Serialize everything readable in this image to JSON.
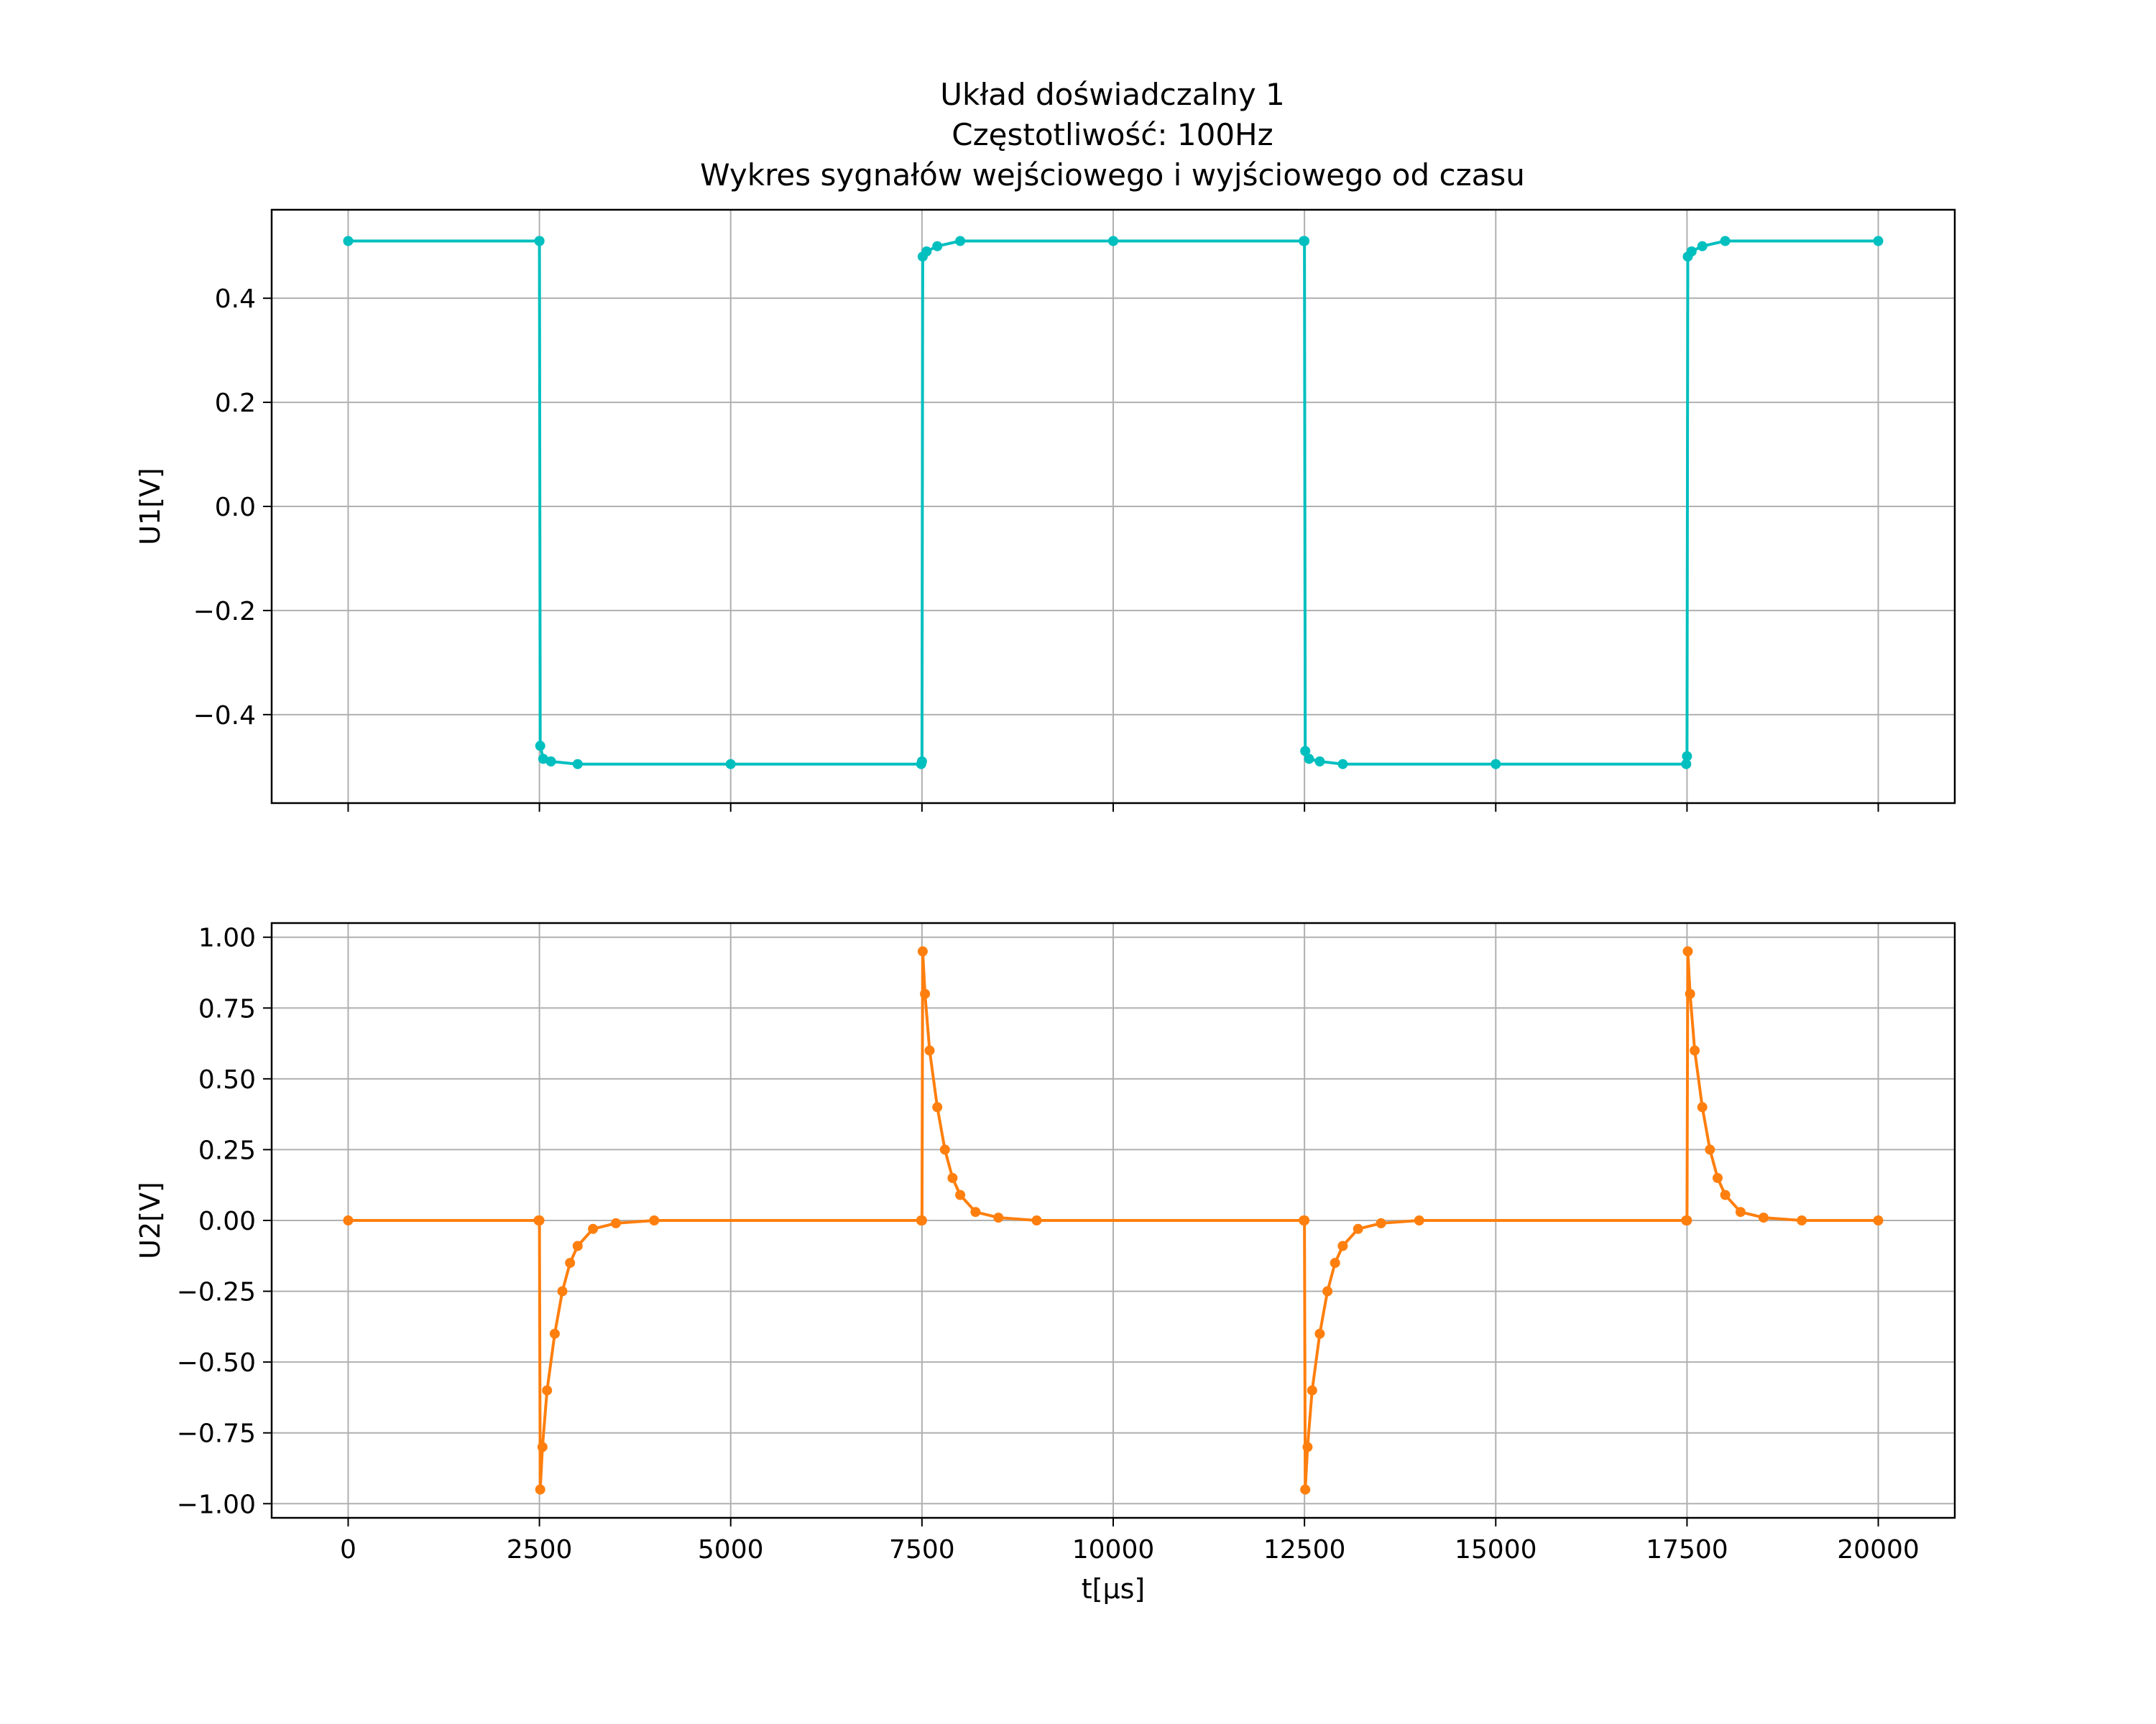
{
  "title_lines": [
    "Układ doświadczalny 1",
    "Częstotliwość: 100Hz",
    "Wykres sygnałów wejściowego i wyjściowego od czasu"
  ],
  "chart_data": [
    {
      "type": "line",
      "ylabel": "U1[V]",
      "xlim": [
        -1000,
        21000
      ],
      "ylim": [
        -0.57,
        0.57
      ],
      "xticks": [
        0,
        2500,
        5000,
        7500,
        10000,
        12500,
        15000,
        17500,
        20000
      ],
      "xtick_labels": [
        "",
        "",
        "",
        "",
        "",
        "",
        "",
        "",
        ""
      ],
      "yticks": [
        -0.4,
        -0.2,
        0.0,
        0.2,
        0.4
      ],
      "ytick_labels": [
        "−0.4",
        "−0.2",
        "0.0",
        "0.2",
        "0.4"
      ],
      "grid": true,
      "color": "#00bfbf",
      "series": [
        {
          "points": [
            [
              0,
              0.51
            ],
            [
              2500,
              0.51
            ],
            [
              2500,
              0.51
            ],
            [
              2510,
              -0.46
            ],
            [
              2550,
              -0.485
            ],
            [
              2650,
              -0.49
            ],
            [
              3000,
              -0.495
            ],
            [
              5000,
              -0.495
            ],
            [
              7490,
              -0.495
            ],
            [
              7500,
              -0.49
            ],
            [
              7510,
              0.48
            ],
            [
              7560,
              0.49
            ],
            [
              7700,
              0.5
            ],
            [
              8000,
              0.51
            ],
            [
              10000,
              0.51
            ],
            [
              12490,
              0.51
            ],
            [
              12500,
              0.51
            ],
            [
              12510,
              -0.47
            ],
            [
              12560,
              -0.485
            ],
            [
              12700,
              -0.49
            ],
            [
              13000,
              -0.495
            ],
            [
              15000,
              -0.495
            ],
            [
              17490,
              -0.495
            ],
            [
              17500,
              -0.48
            ],
            [
              17510,
              0.48
            ],
            [
              17560,
              0.49
            ],
            [
              17700,
              0.5
            ],
            [
              18000,
              0.51
            ],
            [
              20000,
              0.51
            ]
          ]
        }
      ]
    },
    {
      "type": "line",
      "ylabel": "U2[V]",
      "xlabel": "t[μs]",
      "xlim": [
        -1000,
        21000
      ],
      "ylim": [
        -1.05,
        1.05
      ],
      "xticks": [
        0,
        2500,
        5000,
        7500,
        10000,
        12500,
        15000,
        17500,
        20000
      ],
      "xtick_labels": [
        "0",
        "2500",
        "5000",
        "7500",
        "10000",
        "12500",
        "15000",
        "17500",
        "20000"
      ],
      "yticks": [
        -1.0,
        -0.75,
        -0.5,
        -0.25,
        0.0,
        0.25,
        0.5,
        0.75,
        1.0
      ],
      "ytick_labels": [
        "−1.00",
        "−0.75",
        "−0.50",
        "−0.25",
        "0.00",
        "0.25",
        "0.50",
        "0.75",
        "1.00"
      ],
      "grid": true,
      "color": "#ff7f0e",
      "series": [
        {
          "points": [
            [
              0,
              0.0
            ],
            [
              2490,
              0.0
            ],
            [
              2500,
              0.0
            ],
            [
              2510,
              -0.95
            ],
            [
              2540,
              -0.8
            ],
            [
              2600,
              -0.6
            ],
            [
              2700,
              -0.4
            ],
            [
              2800,
              -0.25
            ],
            [
              2900,
              -0.15
            ],
            [
              3000,
              -0.09
            ],
            [
              3200,
              -0.03
            ],
            [
              3500,
              -0.01
            ],
            [
              4000,
              0.0
            ],
            [
              7490,
              0.0
            ],
            [
              7500,
              0.0
            ],
            [
              7510,
              0.95
            ],
            [
              7540,
              0.8
            ],
            [
              7600,
              0.6
            ],
            [
              7700,
              0.4
            ],
            [
              7800,
              0.25
            ],
            [
              7900,
              0.15
            ],
            [
              8000,
              0.09
            ],
            [
              8200,
              0.03
            ],
            [
              8500,
              0.01
            ],
            [
              9000,
              0.0
            ],
            [
              12490,
              0.0
            ],
            [
              12500,
              0.0
            ],
            [
              12510,
              -0.95
            ],
            [
              12540,
              -0.8
            ],
            [
              12600,
              -0.6
            ],
            [
              12700,
              -0.4
            ],
            [
              12800,
              -0.25
            ],
            [
              12900,
              -0.15
            ],
            [
              13000,
              -0.09
            ],
            [
              13200,
              -0.03
            ],
            [
              13500,
              -0.01
            ],
            [
              14000,
              0.0
            ],
            [
              17490,
              0.0
            ],
            [
              17500,
              0.0
            ],
            [
              17510,
              0.95
            ],
            [
              17540,
              0.8
            ],
            [
              17600,
              0.6
            ],
            [
              17700,
              0.4
            ],
            [
              17800,
              0.25
            ],
            [
              17900,
              0.15
            ],
            [
              18000,
              0.09
            ],
            [
              18200,
              0.03
            ],
            [
              18500,
              0.01
            ],
            [
              19000,
              0.0
            ],
            [
              20000,
              0.0
            ]
          ]
        }
      ]
    }
  ]
}
